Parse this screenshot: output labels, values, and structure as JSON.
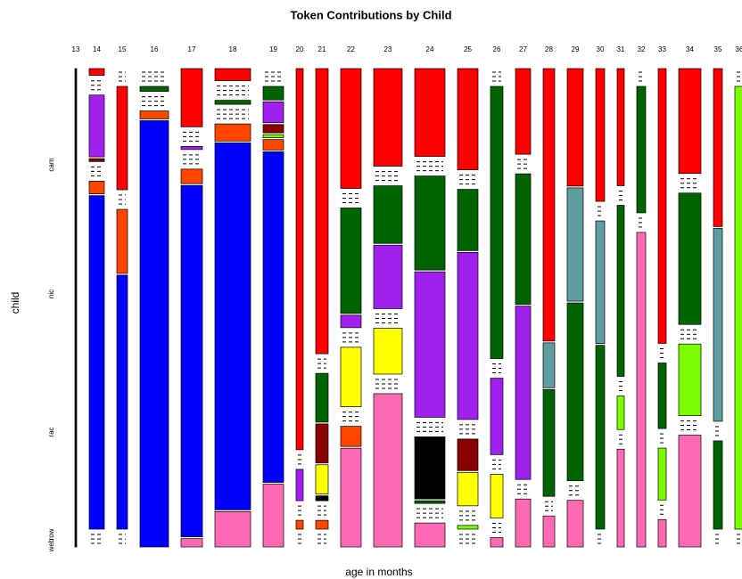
{
  "chart_data": {
    "type": "mosaic",
    "title": "Token Contributions by Child",
    "xlabel": "age in months",
    "ylabel": "child",
    "row_labels": [
      "cam",
      "nic",
      "rac",
      "row",
      "web"
    ],
    "columns": [
      {
        "label": "13",
        "width": 2,
        "segments": [
          {
            "value": 513,
            "color": "#000000"
          }
        ]
      },
      {
        "label": "14",
        "width": 17,
        "segments": [
          {
            "value": 7,
            "color": "#ff0000"
          },
          {
            "value": 0,
            "color": "#000000"
          },
          {
            "value": 63,
            "color": "#a020f0"
          },
          {
            "value": 3,
            "color": "#8b0000"
          },
          {
            "value": 0,
            "color": "#000000"
          },
          {
            "value": 13,
            "color": "#ff4500"
          },
          {
            "value": 340,
            "color": "#0000ff"
          },
          {
            "value": 0,
            "color": "#000000"
          }
        ]
      },
      {
        "label": "15",
        "width": 12,
        "segments": [
          {
            "value": 0,
            "color": "#000000"
          },
          {
            "value": 105,
            "color": "#ff0000"
          },
          {
            "value": 0,
            "color": "#000000"
          },
          {
            "value": 65,
            "color": "#ff4500"
          },
          {
            "value": 258,
            "color": "#0000ff"
          },
          {
            "value": 0,
            "color": "#000000"
          }
        ]
      },
      {
        "label": "16",
        "width": 32,
        "segments": [
          {
            "value": 0,
            "color": "#000000"
          },
          {
            "value": 5,
            "color": "#006400"
          },
          {
            "value": 0,
            "color": "#000000"
          },
          {
            "value": 8,
            "color": "#ff4500"
          },
          {
            "value": 430,
            "color": "#0000ff"
          }
        ]
      },
      {
        "label": "17",
        "width": 24,
        "segments": [
          {
            "value": 56,
            "color": "#ff0000"
          },
          {
            "value": 0,
            "color": "#000000"
          },
          {
            "value": 3,
            "color": "#a020f0"
          },
          {
            "value": 0,
            "color": "#000000"
          },
          {
            "value": 14,
            "color": "#ff4500"
          },
          {
            "value": 338,
            "color": "#0000ff"
          },
          {
            "value": 8,
            "color": "#ff69b4"
          }
        ]
      },
      {
        "label": "18",
        "width": 40,
        "segments": [
          {
            "value": 12,
            "color": "#ff0000"
          },
          {
            "value": 0,
            "color": "#000000"
          },
          {
            "value": 4,
            "color": "#006400"
          },
          {
            "value": 0,
            "color": "#000000"
          },
          {
            "value": 17,
            "color": "#ff4500"
          },
          {
            "value": 364,
            "color": "#0000ff"
          },
          {
            "value": 35,
            "color": "#ff69b4"
          }
        ]
      },
      {
        "label": "19",
        "width": 23,
        "segments": [
          {
            "value": 0,
            "color": "#000000"
          },
          {
            "value": 13,
            "color": "#006400"
          },
          {
            "value": 20,
            "color": "#a020f0"
          },
          {
            "value": 8,
            "color": "#8b0000"
          },
          {
            "value": 3,
            "color": "#7cfc00"
          },
          {
            "value": 10,
            "color": "#ff4500"
          },
          {
            "value": 316,
            "color": "#0000ff"
          },
          {
            "value": 60,
            "color": "#ff69b4"
          }
        ]
      },
      {
        "label": "20",
        "width": 8,
        "segments": [
          {
            "value": 389,
            "color": "#ff0000"
          },
          {
            "value": 0,
            "color": "#000000"
          },
          {
            "value": 32,
            "color": "#a020f0"
          },
          {
            "value": 0,
            "color": "#000000"
          },
          {
            "value": 9,
            "color": "#ff4500"
          },
          {
            "value": 0,
            "color": "#000000"
          }
        ]
      },
      {
        "label": "21",
        "width": 14,
        "segments": [
          {
            "value": 292,
            "color": "#ff0000"
          },
          {
            "value": 0,
            "color": "#000000"
          },
          {
            "value": 50,
            "color": "#006400"
          },
          {
            "value": 40,
            "color": "#8b0000"
          },
          {
            "value": 30,
            "color": "#ffff00"
          },
          {
            "value": 5,
            "color": "#000000"
          },
          {
            "value": 0,
            "color": "#000000"
          },
          {
            "value": 9,
            "color": "#ff4500"
          },
          {
            "value": 0,
            "color": "#000000"
          }
        ]
      },
      {
        "label": "22",
        "width": 23,
        "segments": [
          {
            "value": 125,
            "color": "#ff0000"
          },
          {
            "value": 0,
            "color": "#000000"
          },
          {
            "value": 110,
            "color": "#006400"
          },
          {
            "value": 13,
            "color": "#a020f0"
          },
          {
            "value": 0,
            "color": "#000000"
          },
          {
            "value": 62,
            "color": "#ffff00"
          },
          {
            "value": 0,
            "color": "#000000"
          },
          {
            "value": 21,
            "color": "#ff4500"
          },
          {
            "value": 103,
            "color": "#ff69b4"
          }
        ]
      },
      {
        "label": "23",
        "width": 32,
        "segments": [
          {
            "value": 100,
            "color": "#ff0000"
          },
          {
            "value": 0,
            "color": "#000000"
          },
          {
            "value": 59,
            "color": "#006400"
          },
          {
            "value": 65,
            "color": "#a020f0"
          },
          {
            "value": 0,
            "color": "#000000"
          },
          {
            "value": 47,
            "color": "#ffff00"
          },
          {
            "value": 0,
            "color": "#000000"
          },
          {
            "value": 157,
            "color": "#ff69b4"
          }
        ]
      },
      {
        "label": "24",
        "width": 34,
        "segments": [
          {
            "value": 99,
            "color": "#ff0000"
          },
          {
            "value": 0,
            "color": "#000000"
          },
          {
            "value": 106,
            "color": "#006400"
          },
          {
            "value": 164,
            "color": "#a020f0"
          },
          {
            "value": 0,
            "color": "#000000"
          },
          {
            "value": 70,
            "color": "#000000"
          },
          {
            "value": 3,
            "color": "#006400"
          },
          {
            "value": 0,
            "color": "#000000"
          },
          {
            "value": 27,
            "color": "#ff69b4"
          }
        ]
      },
      {
        "label": "25",
        "width": 23,
        "segments": [
          {
            "value": 109,
            "color": "#ff0000"
          },
          {
            "value": 0,
            "color": "#000000"
          },
          {
            "value": 66,
            "color": "#006400"
          },
          {
            "value": 180,
            "color": "#a020f0"
          },
          {
            "value": 0,
            "color": "#000000"
          },
          {
            "value": 34,
            "color": "#8b0000"
          },
          {
            "value": 36,
            "color": "#ffff00"
          },
          {
            "value": 0,
            "color": "#000000"
          },
          {
            "value": 4,
            "color": "#7cfc00"
          },
          {
            "value": 0,
            "color": "#000000"
          }
        ]
      },
      {
        "label": "26",
        "width": 14,
        "segments": [
          {
            "value": 0,
            "color": "#000000"
          },
          {
            "value": 292,
            "color": "#006400"
          },
          {
            "value": 0,
            "color": "#000000"
          },
          {
            "value": 82,
            "color": "#a020f0"
          },
          {
            "value": 0,
            "color": "#000000"
          },
          {
            "value": 47,
            "color": "#ffff00"
          },
          {
            "value": 0,
            "color": "#000000"
          },
          {
            "value": 10,
            "color": "#ff69b4"
          }
        ]
      },
      {
        "label": "27",
        "width": 17,
        "segments": [
          {
            "value": 84,
            "color": "#ff0000"
          },
          {
            "value": 0,
            "color": "#000000"
          },
          {
            "value": 128,
            "color": "#006400"
          },
          {
            "value": 170,
            "color": "#a020f0"
          },
          {
            "value": 0,
            "color": "#000000"
          },
          {
            "value": 47,
            "color": "#ff69b4"
          }
        ]
      },
      {
        "label": "28",
        "width": 13,
        "segments": [
          {
            "value": 255,
            "color": "#ff0000"
          },
          {
            "value": 42,
            "color": "#5f9ea0"
          },
          {
            "value": 100,
            "color": "#006400"
          },
          {
            "value": 0,
            "color": "#000000"
          },
          {
            "value": 29,
            "color": "#ff69b4"
          }
        ]
      },
      {
        "label": "29",
        "width": 18,
        "segments": [
          {
            "value": 111,
            "color": "#ff0000"
          },
          {
            "value": 107,
            "color": "#5f9ea0"
          },
          {
            "value": 168,
            "color": "#006400"
          },
          {
            "value": 0,
            "color": "#000000"
          },
          {
            "value": 44,
            "color": "#ff69b4"
          }
        ]
      },
      {
        "label": "30",
        "width": 10,
        "segments": [
          {
            "value": 130,
            "color": "#ff0000"
          },
          {
            "value": 0,
            "color": "#000000"
          },
          {
            "value": 120,
            "color": "#5f9ea0"
          },
          {
            "value": 180,
            "color": "#006400"
          },
          {
            "value": 0,
            "color": "#000000"
          }
        ]
      },
      {
        "label": "31",
        "width": 8,
        "segments": [
          {
            "value": 115,
            "color": "#ff0000"
          },
          {
            "value": 0,
            "color": "#000000"
          },
          {
            "value": 168,
            "color": "#006400"
          },
          {
            "value": 0,
            "color": "#000000"
          },
          {
            "value": 33,
            "color": "#7cfc00"
          },
          {
            "value": 0,
            "color": "#000000"
          },
          {
            "value": 96,
            "color": "#ff69b4"
          }
        ]
      },
      {
        "label": "32",
        "width": 10,
        "segments": [
          {
            "value": 0,
            "color": "#000000"
          },
          {
            "value": 123,
            "color": "#006400"
          },
          {
            "value": 0,
            "color": "#000000"
          },
          {
            "value": 306,
            "color": "#ff69b4"
          }
        ]
      },
      {
        "label": "33",
        "width": 9,
        "segments": [
          {
            "value": 281,
            "color": "#ff0000"
          },
          {
            "value": 0,
            "color": "#000000"
          },
          {
            "value": 67,
            "color": "#006400"
          },
          {
            "value": 0,
            "color": "#000000"
          },
          {
            "value": 53,
            "color": "#7cfc00"
          },
          {
            "value": 0,
            "color": "#000000"
          },
          {
            "value": 28,
            "color": "#ff69b4"
          }
        ]
      },
      {
        "label": "34",
        "width": 25,
        "segments": [
          {
            "value": 107,
            "color": "#ff0000"
          },
          {
            "value": 0,
            "color": "#000000"
          },
          {
            "value": 134,
            "color": "#006400"
          },
          {
            "value": 0,
            "color": "#000000"
          },
          {
            "value": 73,
            "color": "#7cfc00"
          },
          {
            "value": 0,
            "color": "#000000"
          },
          {
            "value": 114,
            "color": "#ff69b4"
          }
        ]
      },
      {
        "label": "35",
        "width": 10,
        "segments": [
          {
            "value": 154,
            "color": "#ff0000"
          },
          {
            "value": 188,
            "color": "#5f9ea0"
          },
          {
            "value": 0,
            "color": "#000000"
          },
          {
            "value": 86,
            "color": "#006400"
          },
          {
            "value": 0,
            "color": "#000000"
          }
        ]
      },
      {
        "label": "36",
        "width": 10,
        "segments": [
          {
            "value": 0,
            "color": "#000000"
          },
          {
            "value": 435,
            "color": "#7cfc00"
          },
          {
            "value": 0,
            "color": "#000000"
          }
        ]
      }
    ]
  }
}
